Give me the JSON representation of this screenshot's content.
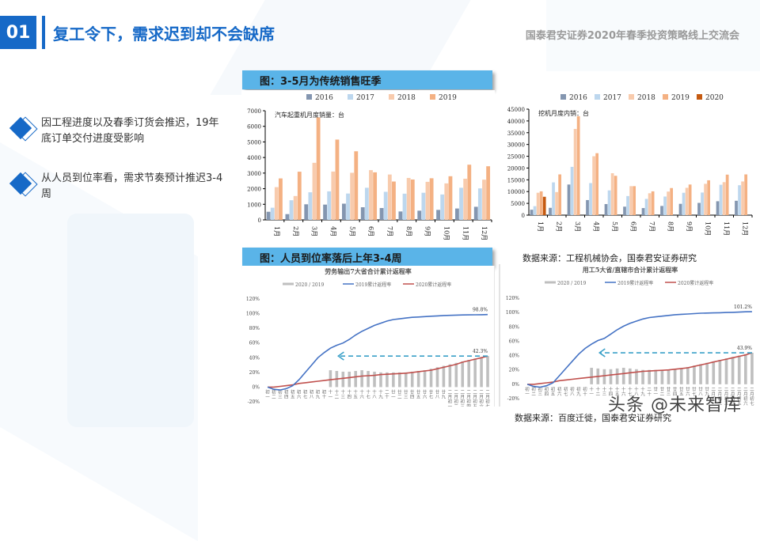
{
  "header": {
    "section_number": "01",
    "title": "复工令下，需求迟到却不会缺席",
    "conference": "国泰君安证券2020年春季投资策略线上交流会"
  },
  "bullets": [
    {
      "text": "因工程进度以及春季订货会推迟，19年底订单交付进度受影响"
    },
    {
      "text": "从人员到位率看，需求节奏预计推迟3-4周"
    }
  ],
  "panels": {
    "top_title": "图：3-5月为传统销售旺季",
    "bottom_title": "图：人员到位率落后上年3-4周",
    "source_top": "数据来源：工程机械协会，国泰君安证券研究",
    "source_bottom": "数据来源：百度迁徙，国泰君安证券研究"
  },
  "watermark": "头条 @未来智库",
  "colors": {
    "accent": "#1669c7",
    "panel_header": "#5ab4e8",
    "s2016": "#8496b0",
    "s2017": "#bdd7ee",
    "s2018": "#f8cbad",
    "s2019": "#f4b183",
    "s2020": "#c55a11",
    "line2019": "#4472c4",
    "line2020": "#c0504d",
    "ratio_bar": "#bfbfbf",
    "arrow": "#3aa0c8"
  },
  "chart_data": [
    {
      "type": "bar",
      "title": "汽车起重机月度销量：台",
      "categories": [
        "1月",
        "2月",
        "3月",
        "4月",
        "5月",
        "6月",
        "7月",
        "8月",
        "9月",
        "10月",
        "11月",
        "12月"
      ],
      "series": [
        {
          "name": "2016",
          "values": [
            520,
            370,
            1000,
            980,
            1040,
            810,
            760,
            540,
            590,
            640,
            730,
            840
          ]
        },
        {
          "name": "2017",
          "values": [
            780,
            1260,
            1770,
            1830,
            1690,
            2060,
            1800,
            1680,
            1740,
            1630,
            2060,
            2020
          ]
        },
        {
          "name": "2018",
          "values": [
            2100,
            1530,
            3660,
            3100,
            3020,
            3190,
            2910,
            2690,
            2440,
            2340,
            2640,
            2580
          ]
        },
        {
          "name": "2019",
          "values": [
            2660,
            3090,
            6570,
            5150,
            4400,
            3050,
            2460,
            2590,
            2670,
            2800,
            3540,
            3440
          ]
        }
      ],
      "xlabel": "",
      "ylabel": "",
      "ylim": [
        0,
        7000
      ],
      "yticks": [
        0,
        1000,
        2000,
        3000,
        4000,
        5000,
        6000,
        7000
      ],
      "legend": [
        "2016",
        "2017",
        "2018",
        "2019"
      ],
      "legend_position": "top"
    },
    {
      "type": "bar",
      "title": "挖机月度内销：台",
      "categories": [
        "1月",
        "2月",
        "3月",
        "4月",
        "5月",
        "6月",
        "7月",
        "8月",
        "9月",
        "10月",
        "11月",
        "12月"
      ],
      "series": [
        {
          "name": "2016",
          "values": [
            2300,
            3100,
            13000,
            6400,
            4700,
            3600,
            3000,
            3900,
            4800,
            5200,
            5900,
            6100
          ]
        },
        {
          "name": "2017",
          "values": [
            3800,
            13900,
            20500,
            13600,
            10500,
            8100,
            6900,
            7900,
            9500,
            9600,
            12900,
            12700
          ]
        },
        {
          "name": "2018",
          "values": [
            9500,
            9800,
            36600,
            25000,
            17800,
            12300,
            9300,
            10000,
            11600,
            13300,
            14000,
            14300
          ]
        },
        {
          "name": "2019",
          "values": [
            10100,
            17300,
            42000,
            26300,
            16700,
            12300,
            10100,
            11500,
            13000,
            14800,
            17200,
            17300
          ]
        },
        {
          "name": "2020",
          "values": [
            7800,
            null,
            null,
            null,
            null,
            null,
            null,
            null,
            null,
            null,
            null,
            null
          ]
        }
      ],
      "xlabel": "",
      "ylabel": "",
      "ylim": [
        0,
        45000
      ],
      "yticks": [
        0,
        5000,
        10000,
        15000,
        20000,
        25000,
        30000,
        35000,
        40000,
        45000
      ],
      "legend": [
        "2016",
        "2017",
        "2018",
        "2019",
        "2020"
      ],
      "legend_position": "top"
    },
    {
      "type": "line",
      "title": "劳务输出7大省合计累计返程率",
      "legend": [
        "2020 / 2019",
        "2019累计返程率",
        "2020累计返程率"
      ],
      "x": [
        "初一",
        "初二",
        "初三",
        "初四",
        "初五",
        "初六",
        "初七",
        "初八",
        "初九",
        "初十",
        "十一",
        "十二",
        "十三",
        "十四",
        "十五",
        "十六",
        "十七",
        "十八",
        "十九",
        "二十",
        "廿一",
        "廿二",
        "廿三",
        "廿四",
        "廿五",
        "廿六",
        "廿七",
        "廿八",
        "廿九",
        "二月初一",
        "二月初二",
        "二月初三",
        "二月初四",
        "二月初五",
        "二月初六",
        "二月初七"
      ],
      "series": [
        {
          "name": "2019累计返程率",
          "values": [
            0,
            -3,
            -4,
            -2,
            2,
            10,
            20,
            30,
            40,
            47,
            53,
            57,
            60,
            65,
            71,
            76,
            80,
            84,
            87,
            90,
            92,
            93,
            94,
            95,
            95.5,
            96,
            96.5,
            97,
            97.5,
            97.7,
            98,
            98.2,
            98.4,
            98.5,
            98.6,
            98.8
          ]
        },
        {
          "name": "2020累计返程率",
          "values": [
            0,
            0,
            1,
            2,
            3,
            5,
            6,
            7,
            8,
            9,
            10,
            11,
            12,
            13,
            14,
            15,
            15.5,
            16,
            17,
            17.5,
            18,
            18.5,
            19,
            20,
            21,
            22,
            23,
            25,
            27,
            29,
            31,
            34,
            36,
            38,
            40,
            42.3
          ]
        },
        {
          "name": "2020 / 2019",
          "values": [
            null,
            null,
            null,
            null,
            null,
            null,
            null,
            null,
            null,
            null,
            23,
            22,
            21,
            21,
            22,
            23,
            22,
            21,
            20,
            20,
            20,
            20,
            20,
            21,
            22,
            23,
            25,
            27,
            29,
            31,
            33,
            35,
            37,
            39,
            41,
            42.3
          ]
        }
      ],
      "annotations": [
        "98.8%",
        "42.3%"
      ],
      "ylim": [
        -20,
        120
      ],
      "yticks": [
        "-20%",
        "0%",
        "20%",
        "40%",
        "60%",
        "80%",
        "100%",
        "120%"
      ]
    },
    {
      "type": "line",
      "title": "用工5大省/直辖市合计累计返程率",
      "legend": [
        "2020 / 2019",
        "2019累计返程率",
        "2020累计返程率"
      ],
      "x": [
        "初一",
        "初二",
        "初三",
        "初四",
        "初五",
        "初六",
        "初七",
        "初八",
        "初九",
        "初十",
        "十一",
        "十二",
        "十三",
        "十四",
        "十五",
        "十六",
        "十七",
        "十八",
        "十九",
        "二十",
        "廿一",
        "廿二",
        "廿三",
        "廿四",
        "廿五",
        "廿六",
        "廿七",
        "廿八",
        "廿九",
        "二月初一",
        "二月初二",
        "二月初三",
        "二月初四",
        "二月初五",
        "二月初六",
        "二月初七"
      ],
      "series": [
        {
          "name": "2019累计返程率",
          "values": [
            0,
            -3,
            -4,
            -2,
            2,
            12,
            22,
            32,
            42,
            50,
            56,
            61,
            64,
            70,
            76,
            81,
            85,
            88,
            91,
            93,
            94,
            95,
            96,
            97,
            97.5,
            98,
            98.5,
            99,
            99.3,
            99.5,
            99.7,
            100,
            100.3,
            100.6,
            101,
            101.2
          ]
        },
        {
          "name": "2020累计返程率",
          "values": [
            0,
            0,
            1,
            2,
            3,
            5,
            6,
            7,
            8,
            9,
            10,
            11,
            12,
            13,
            14,
            15,
            16,
            17,
            18,
            18.5,
            19,
            19.5,
            20,
            21,
            22,
            23,
            25,
            27,
            29,
            31,
            33,
            35,
            37,
            39,
            41,
            43.9
          ]
        },
        {
          "name": "2020 / 2019",
          "values": [
            null,
            null,
            null,
            null,
            null,
            null,
            null,
            null,
            null,
            null,
            23,
            22,
            21,
            21,
            22,
            23,
            22,
            21,
            20,
            20,
            20,
            20,
            20,
            21,
            22,
            24,
            26,
            28,
            30,
            32,
            34,
            36,
            38,
            40,
            42,
            43.9
          ]
        }
      ],
      "annotations": [
        "101.2%",
        "43.9%"
      ],
      "ylim": [
        -20,
        120
      ],
      "yticks": [
        "-20%",
        "0%",
        "20%",
        "40%",
        "60%",
        "80%",
        "100%",
        "120%"
      ]
    }
  ]
}
